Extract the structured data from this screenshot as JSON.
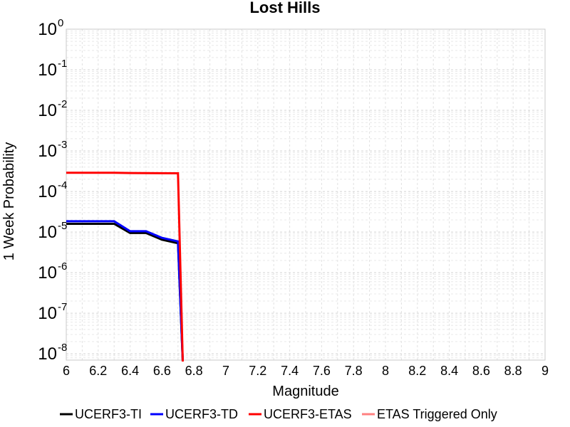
{
  "chart_data": {
    "type": "line",
    "title": "Lost Hills",
    "xlabel": "Magnitude",
    "ylabel": "1 Week Probability",
    "xlim": [
      6,
      9
    ],
    "ylim": [
      7e-09,
      1
    ],
    "yscale": "log",
    "grid": true,
    "legend_position": "bottom",
    "x_ticks": [
      "6",
      "6.2",
      "6.4",
      "6.6",
      "6.8",
      "7",
      "7.2",
      "7.4",
      "7.6",
      "7.8",
      "8",
      "8.2",
      "8.4",
      "8.6",
      "8.8",
      "9"
    ],
    "y_ticks": [
      {
        "base": "10",
        "exp": "0",
        "value": 1
      },
      {
        "base": "10",
        "exp": "-1",
        "value": 0.1
      },
      {
        "base": "10",
        "exp": "-2",
        "value": 0.01
      },
      {
        "base": "10",
        "exp": "-3",
        "value": 0.001
      },
      {
        "base": "10",
        "exp": "-4",
        "value": 0.0001
      },
      {
        "base": "10",
        "exp": "-5",
        "value": 1e-05
      },
      {
        "base": "10",
        "exp": "-6",
        "value": 1e-06
      },
      {
        "base": "10",
        "exp": "-7",
        "value": 1e-07
      },
      {
        "base": "10",
        "exp": "-8",
        "value": 1e-08
      }
    ],
    "series": [
      {
        "name": "UCERF3-TI",
        "color": "#000000",
        "x": [
          6.0,
          6.1,
          6.2,
          6.3,
          6.4,
          6.5,
          6.6,
          6.7,
          6.73
        ],
        "y": [
          1.6e-05,
          1.6e-05,
          1.6e-05,
          1.6e-05,
          9.5e-06,
          9.5e-06,
          6.5e-06,
          5.3e-06,
          5e-09
        ]
      },
      {
        "name": "UCERF3-TD",
        "color": "#0000ff",
        "x": [
          6.0,
          6.1,
          6.2,
          6.3,
          6.4,
          6.5,
          6.6,
          6.7,
          6.73
        ],
        "y": [
          1.85e-05,
          1.85e-05,
          1.85e-05,
          1.85e-05,
          1.05e-05,
          1.05e-05,
          7.2e-06,
          5.9e-06,
          5e-09
        ]
      },
      {
        "name": "UCERF3-ETAS",
        "color": "#ff0000",
        "x": [
          6.0,
          6.1,
          6.2,
          6.3,
          6.4,
          6.5,
          6.6,
          6.7,
          6.73
        ],
        "y": [
          0.00029,
          0.00029,
          0.00029,
          0.00029,
          0.000285,
          0.000283,
          0.000282,
          0.000281,
          5e-09
        ]
      },
      {
        "name": "ETAS Triggered Only",
        "color": "#ff8080",
        "x": [],
        "y": []
      }
    ]
  }
}
